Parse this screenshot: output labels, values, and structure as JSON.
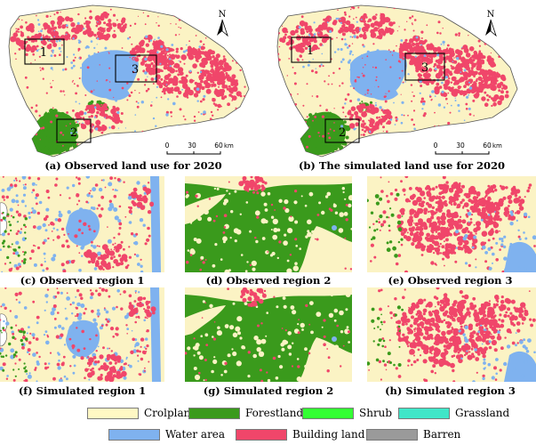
{
  "panels": {
    "a": {
      "caption": "(a) Observed land use for 2020",
      "boxes": [
        "1",
        "2",
        "3"
      ],
      "north": "N",
      "scale_ticks": [
        "0",
        "30",
        "60"
      ],
      "scale_unit": "km"
    },
    "b": {
      "caption": "(b) The simulated land use for 2020",
      "boxes": [
        "1",
        "2",
        "3"
      ],
      "north": "N",
      "scale_ticks": [
        "0",
        "30",
        "60"
      ],
      "scale_unit": "km"
    },
    "c": {
      "caption": "(c) Observed region 1"
    },
    "d": {
      "caption": "(d) Observed region 2"
    },
    "e": {
      "caption": "(e) Observed region 3"
    },
    "f": {
      "caption": "(f) Simulated region 1"
    },
    "g": {
      "caption": "(g) Simulated region 2"
    },
    "h": {
      "caption": "(h) Simulated region 3"
    }
  },
  "legend": [
    {
      "label": "Crolpland",
      "color": "#fff8c4"
    },
    {
      "label": "Forestland",
      "color": "#3a9a1c"
    },
    {
      "label": "Shrub",
      "color": "#33ff33"
    },
    {
      "label": "Grassland",
      "color": "#40e6c8"
    },
    {
      "label": "Water area",
      "color": "#7fb2ef"
    },
    {
      "label": "Building land",
      "color": "#f0466a"
    },
    {
      "label": "Barren",
      "color": "#9a9a9a"
    }
  ],
  "colors": {
    "cropland": "#fbf3c4",
    "forest": "#3a9a1c",
    "water": "#7fb2ef",
    "building": "#f0466a",
    "barren": "#9a9a9a"
  }
}
